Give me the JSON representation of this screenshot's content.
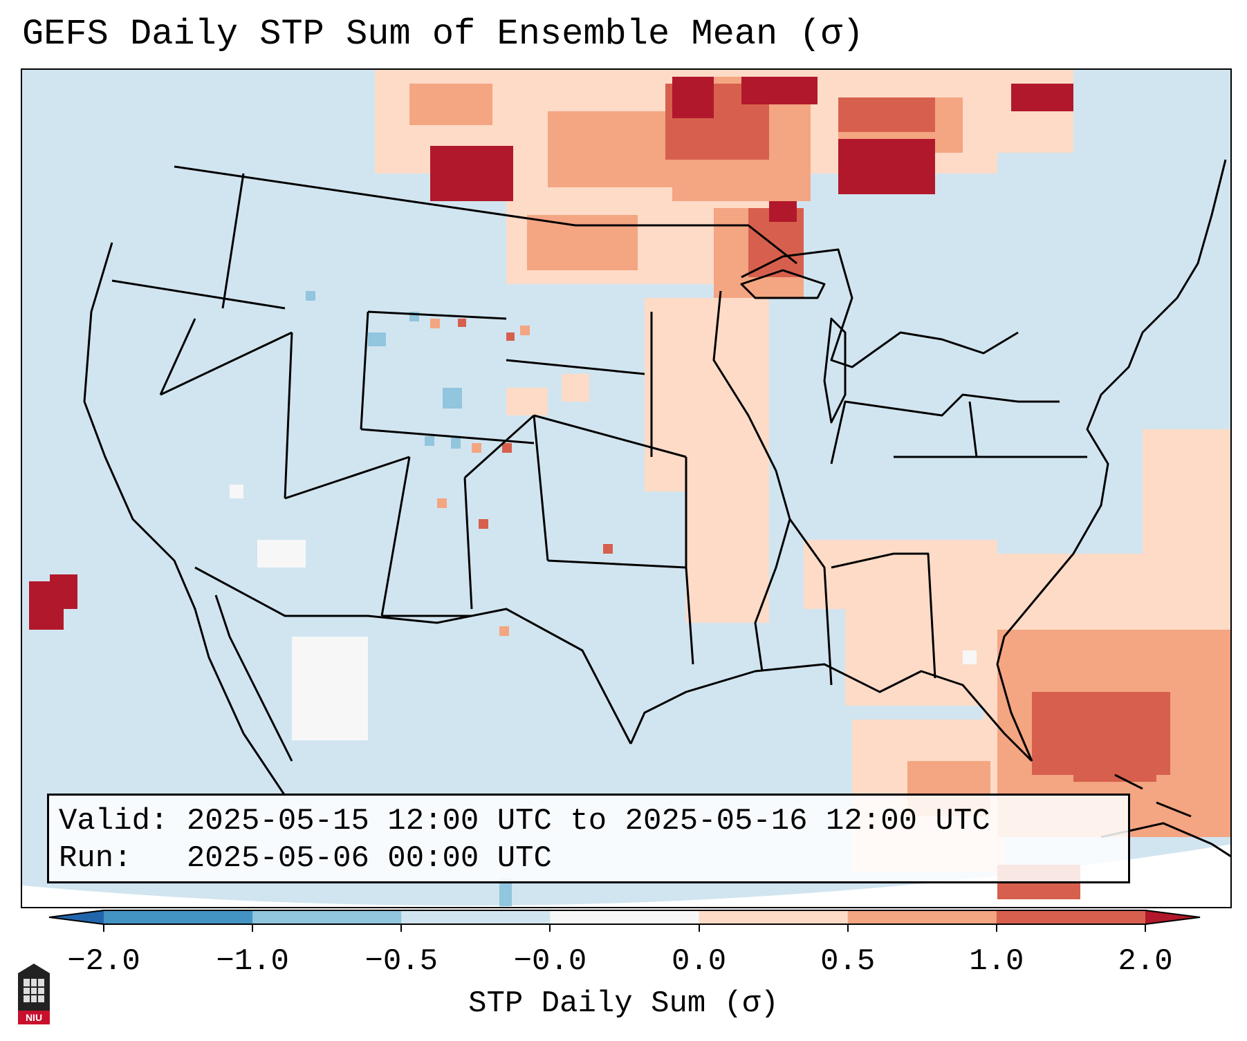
{
  "title": "GEFS Daily STP Sum of Ensemble Mean (σ)",
  "info": {
    "valid_label": "Valid:",
    "valid_value": "2025-05-15 12:00 UTC to 2025-05-16 12:00 UTC",
    "run_label": "Run:",
    "run_value": "2025-05-06 00:00 UTC"
  },
  "colorbar": {
    "label": "STP Daily Sum (σ)",
    "ticks": [
      "−2.0",
      "−1.0",
      "−0.5",
      "−0.0",
      "0.0",
      "0.5",
      "1.0",
      "2.0"
    ],
    "colors": [
      "#4393c3",
      "#92c5de",
      "#d1e5f0",
      "#f7f7f7",
      "#fddbc7",
      "#f4a582",
      "#d6604d"
    ],
    "extend_low_color": "#2166ac",
    "extend_high_color": "#b2182b"
  },
  "map": {
    "background_value": "#d1e5f0",
    "land_color": "#d1e5f0",
    "ocean_color": "#ffffff"
  },
  "logo": {
    "text": "NIU"
  }
}
